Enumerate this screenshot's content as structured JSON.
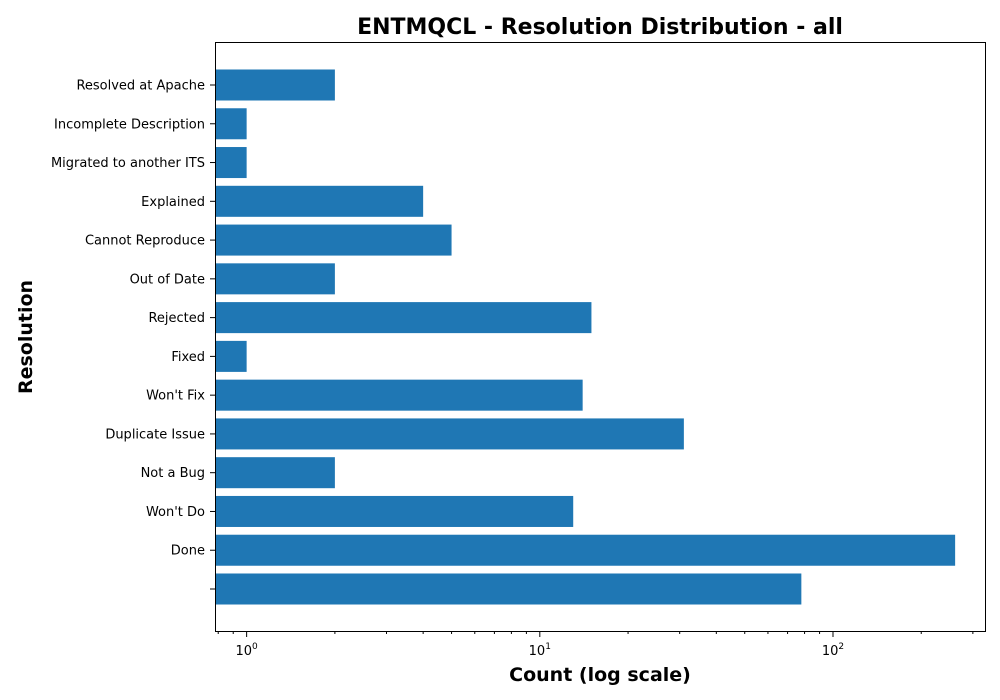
{
  "chart_data": {
    "type": "bar",
    "orientation": "horizontal",
    "title": "ENTMQCL - Resolution Distribution - all",
    "xlabel": "Count (log scale)",
    "ylabel": "Resolution",
    "x_scale": "log",
    "xlim": [
      0.78,
      330
    ],
    "x_ticks": [
      {
        "value": 1,
        "base": "10",
        "exp": "0"
      },
      {
        "value": 10,
        "base": "10",
        "exp": "1"
      },
      {
        "value": 100,
        "base": "10",
        "exp": "2"
      }
    ],
    "color": "#1f77b4",
    "grid": false,
    "categories": [
      "",
      "Done",
      "Won't Do",
      "Not a Bug",
      "Duplicate Issue",
      "Won't Fix",
      "Fixed",
      "Rejected",
      "Out of Date",
      "Cannot Reproduce",
      "Explained",
      "Migrated to another ITS",
      "Incomplete Description",
      "Resolved at Apache"
    ],
    "values": [
      78,
      261,
      13,
      2,
      31,
      14,
      1,
      15,
      2,
      5,
      4,
      1,
      1,
      2
    ]
  }
}
